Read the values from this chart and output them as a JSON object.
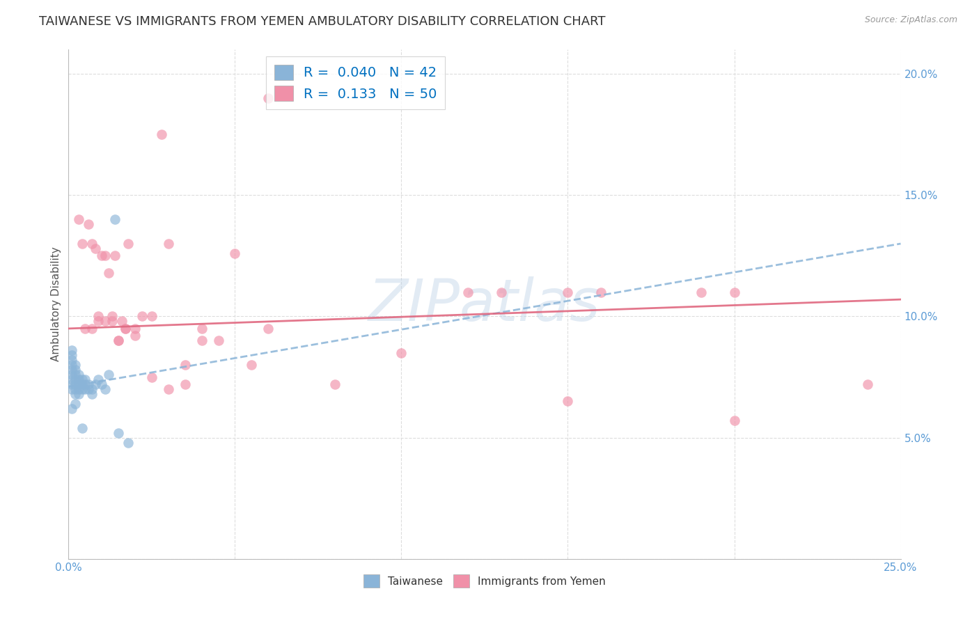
{
  "title": "TAIWANESE VS IMMIGRANTS FROM YEMEN AMBULATORY DISABILITY CORRELATION CHART",
  "source": "Source: ZipAtlas.com",
  "ylabel": "Ambulatory Disability",
  "watermark": "ZIPatlas",
  "xlim": [
    0.0,
    0.25
  ],
  "ylim": [
    0.0,
    0.21
  ],
  "taiwanese_color": "#8ab4d8",
  "taiwan_line_color": "#8ab4d8",
  "yemen_color": "#f090a8",
  "yemen_line_color": "#e06880",
  "taiwan_R": 0.04,
  "taiwan_N": 42,
  "yemen_R": 0.133,
  "yemen_N": 50,
  "taiwan_x": [
    0.001,
    0.001,
    0.001,
    0.001,
    0.001,
    0.001,
    0.001,
    0.001,
    0.001,
    0.001,
    0.002,
    0.002,
    0.002,
    0.002,
    0.002,
    0.002,
    0.002,
    0.002,
    0.003,
    0.003,
    0.003,
    0.003,
    0.003,
    0.004,
    0.004,
    0.004,
    0.004,
    0.005,
    0.005,
    0.005,
    0.006,
    0.006,
    0.007,
    0.007,
    0.008,
    0.009,
    0.01,
    0.011,
    0.012,
    0.014,
    0.015,
    0.018
  ],
  "taiwan_y": [
    0.07,
    0.072,
    0.074,
    0.076,
    0.078,
    0.08,
    0.082,
    0.084,
    0.086,
    0.062,
    0.068,
    0.07,
    0.072,
    0.074,
    0.076,
    0.078,
    0.08,
    0.064,
    0.068,
    0.07,
    0.072,
    0.074,
    0.076,
    0.07,
    0.072,
    0.074,
    0.054,
    0.07,
    0.072,
    0.074,
    0.07,
    0.072,
    0.068,
    0.07,
    0.072,
    0.074,
    0.072,
    0.07,
    0.076,
    0.14,
    0.052,
    0.048
  ],
  "yemen_x": [
    0.003,
    0.004,
    0.006,
    0.007,
    0.008,
    0.009,
    0.01,
    0.011,
    0.012,
    0.013,
    0.014,
    0.015,
    0.016,
    0.017,
    0.018,
    0.02,
    0.022,
    0.025,
    0.028,
    0.03,
    0.035,
    0.04,
    0.045,
    0.05,
    0.055,
    0.06,
    0.12,
    0.13,
    0.15,
    0.16,
    0.19,
    0.2,
    0.005,
    0.007,
    0.009,
    0.011,
    0.013,
    0.015,
    0.017,
    0.02,
    0.025,
    0.03,
    0.035,
    0.04,
    0.06,
    0.08,
    0.1,
    0.15,
    0.2,
    0.24
  ],
  "yemen_y": [
    0.14,
    0.13,
    0.138,
    0.095,
    0.128,
    0.098,
    0.125,
    0.098,
    0.118,
    0.1,
    0.125,
    0.09,
    0.098,
    0.095,
    0.13,
    0.092,
    0.1,
    0.075,
    0.175,
    0.13,
    0.072,
    0.095,
    0.09,
    0.126,
    0.08,
    0.095,
    0.11,
    0.11,
    0.11,
    0.11,
    0.11,
    0.11,
    0.095,
    0.13,
    0.1,
    0.125,
    0.098,
    0.09,
    0.095,
    0.095,
    0.1,
    0.07,
    0.08,
    0.09,
    0.19,
    0.072,
    0.085,
    0.065,
    0.057,
    0.072
  ],
  "background_color": "#ffffff",
  "grid_color": "#dddddd",
  "tick_label_color": "#5b9bd5",
  "title_color": "#333333",
  "title_fontsize": 13,
  "axis_label_fontsize": 11,
  "tick_fontsize": 11,
  "legend_R_color": "#0070c0",
  "legend_N_color": "#0070c0"
}
